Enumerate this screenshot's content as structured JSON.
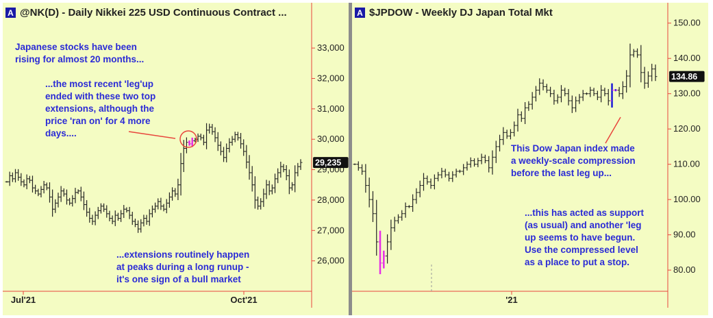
{
  "chart_data": [
    {
      "type": "ohlc",
      "title": "@NK(D) - Daily  Nikkei 225 USD Continuous Contract  ...",
      "badge": "A",
      "ylim": [
        25000,
        34400
      ],
      "y_ticks": [
        "26,000",
        "27,000",
        "28,000",
        "29,000",
        "30,000",
        "31,000",
        "32,000",
        "33,000"
      ],
      "x_ticks": [
        "Jul'21",
        "Oct'21"
      ],
      "last_price": "29,235",
      "closes": [
        28600,
        28800,
        28700,
        28900,
        28750,
        28600,
        28500,
        28700,
        28650,
        28400,
        28300,
        28200,
        28350,
        28500,
        28400,
        28100,
        27700,
        27900,
        28100,
        28300,
        28200,
        28000,
        27900,
        28050,
        28250,
        28300,
        28100,
        27850,
        27600,
        27400,
        27300,
        27500,
        27650,
        27800,
        27700,
        27550,
        27400,
        27300,
        27500,
        27400,
        27550,
        27700,
        27650,
        27500,
        27300,
        27200,
        27050,
        27250,
        27400,
        27300,
        27550,
        27700,
        27800,
        27950,
        27800,
        27700,
        27900,
        28100,
        28300,
        28200,
        28500,
        29200,
        29700,
        29900,
        29850,
        29950,
        30000,
        30100,
        30050,
        29900,
        30300,
        30400,
        30250,
        30050,
        29800,
        29600,
        29400,
        29700,
        29900,
        30000,
        30150,
        30050,
        29850,
        29600,
        29250,
        28900,
        28500,
        28000,
        27800,
        27950,
        28200,
        28500,
        28300,
        28400,
        28700,
        28900,
        29100,
        29000,
        28800,
        28400,
        28500,
        28900,
        29100,
        29235
      ]
    },
    {
      "type": "ohlc",
      "title": "$JPDOW - Weekly  DJ Japan Total Mkt",
      "badge": "A",
      "ylim": [
        74,
        155
      ],
      "y_ticks": [
        "80.00",
        "90.00",
        "100.00",
        "110.00",
        "120.00",
        "130.00",
        "140.00",
        "150.00"
      ],
      "x_ticks": [
        "'21"
      ],
      "last_price": "134.86",
      "closes": [
        110,
        109,
        108,
        104,
        100,
        96,
        88,
        82,
        84,
        88,
        92,
        94,
        95,
        96,
        98,
        98,
        100,
        102,
        104,
        106,
        105,
        104,
        106,
        107,
        108,
        107,
        106,
        107,
        108,
        108,
        109,
        110,
        111,
        110,
        111,
        112,
        111,
        109,
        112,
        115,
        117,
        119,
        118,
        119,
        121,
        124,
        123,
        126,
        127,
        129,
        131,
        133,
        132,
        131,
        130,
        128,
        129,
        131,
        130,
        128,
        126,
        128,
        129,
        130,
        130,
        131,
        130,
        129,
        131,
        130,
        128,
        131,
        131,
        130,
        132,
        135,
        141,
        142,
        141,
        136,
        133,
        135,
        137,
        134.86
      ]
    }
  ],
  "annotations": {
    "left_1_line1": "Japanese stocks have been",
    "left_1_line2": "rising for almost 20 months...",
    "left_2_line1": "...the most recent 'leg'up",
    "left_2_line2": "ended with these two top",
    "left_2_line3": "extensions, although the",
    "left_2_line4": "price 'ran on' for 4 more",
    "left_2_line5": "days....",
    "left_3_line1": "...extensions routinely happen",
    "left_3_line2": "at peaks during a long runup -",
    "left_3_line3": "it's one sign of a bull market",
    "right_1_line1": "This Dow Japan index made",
    "right_1_line2": "a weekly-scale compression",
    "right_1_line3": "before the last leg up...",
    "right_2_line1": "...this has acted as support",
    "right_2_line2": "(as usual) and another 'leg",
    "right_2_line3": "up seems to have begun.",
    "right_2_line4": "Use the compressed level",
    "right_2_line5": "as a place to put a stop."
  },
  "colors": {
    "background": "#f4fcc3",
    "axis": "#e8453c",
    "bars": "#222222",
    "annotation": "#2b2bd6",
    "extension": "#e62ee6",
    "compression": "#1a1ad6"
  }
}
